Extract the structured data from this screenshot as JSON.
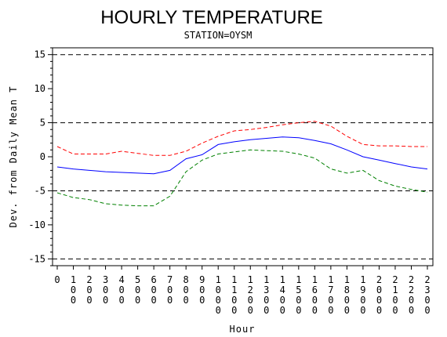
{
  "chart_data": {
    "type": "line",
    "title": "HOURLY TEMPERATURE",
    "subtitle": "STATION=OYSM",
    "xlabel": "Hour",
    "ylabel": "Dev. from Daily Mean T",
    "ylim": [
      -16,
      16
    ],
    "xlim": [
      0,
      2300
    ],
    "yticks": [
      "-15",
      "-10",
      "-5",
      "0",
      "5",
      "10",
      "15"
    ],
    "ytick_values": [
      -15,
      -10,
      -5,
      0,
      5,
      10,
      15
    ],
    "xticks": [
      "0",
      "100",
      "200",
      "300",
      "400",
      "500",
      "600",
      "700",
      "800",
      "900",
      "1000",
      "1100",
      "1200",
      "1300",
      "1400",
      "1500",
      "1600",
      "1700",
      "1800",
      "1900",
      "2000",
      "2100",
      "2200",
      "2300"
    ],
    "x": [
      0,
      100,
      200,
      300,
      400,
      500,
      600,
      700,
      800,
      900,
      1000,
      1100,
      1200,
      1300,
      1400,
      1500,
      1600,
      1700,
      1800,
      1900,
      2000,
      2100,
      2200,
      2300
    ],
    "reference_lines": [
      -15,
      -5,
      5,
      15
    ],
    "series": [
      {
        "color": "#ff0000",
        "dash": "dashed",
        "values": [
          1.5,
          0.4,
          0.4,
          0.4,
          0.8,
          0.5,
          0.2,
          0.2,
          0.8,
          2.0,
          3.0,
          3.8,
          4.0,
          4.3,
          4.7,
          5.0,
          5.2,
          4.5,
          3.0,
          1.8,
          1.6,
          1.6,
          1.5,
          1.5
        ]
      },
      {
        "color": "#0000ff",
        "dash": "solid",
        "values": [
          -1.5,
          -1.8,
          -2.0,
          -2.2,
          -2.3,
          -2.4,
          -2.5,
          -2.0,
          -0.3,
          0.3,
          1.8,
          2.2,
          2.5,
          2.7,
          2.9,
          2.8,
          2.4,
          1.9,
          1.0,
          0.0,
          -0.5,
          -1.0,
          -1.5,
          -1.8
        ]
      },
      {
        "color": "#008000",
        "dash": "dashed",
        "values": [
          -5.3,
          -6.0,
          -6.3,
          -6.9,
          -7.1,
          -7.2,
          -7.2,
          -5.8,
          -2.2,
          -0.5,
          0.4,
          0.7,
          1.0,
          0.9,
          0.8,
          0.4,
          -0.2,
          -1.8,
          -2.4,
          -2.0,
          -3.5,
          -4.3,
          -4.8,
          -5.2
        ]
      }
    ]
  }
}
